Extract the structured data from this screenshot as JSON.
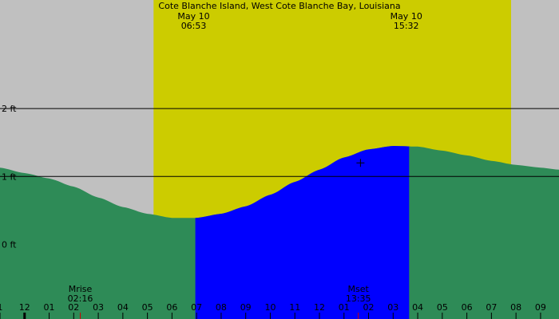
{
  "chart_data": {
    "type": "area",
    "title": "Cote Blanche Island, West Cote Blanche Bay, Louisiana",
    "y_unit": "ft",
    "ylim": [
      -1.1,
      3.6
    ],
    "y_ticks": [
      {
        "value": 2,
        "label": "2 ft"
      },
      {
        "value": 1,
        "label": "1 ft"
      },
      {
        "value": 0,
        "label": "0 ft"
      }
    ],
    "reference_lines": [
      2,
      1
    ],
    "x_unit": "hour",
    "x_range": [
      -1.0,
      21.75
    ],
    "x_ticks": [
      {
        "hour": -1,
        "label": "1"
      },
      {
        "hour": 0,
        "label": "12"
      },
      {
        "hour": 1,
        "label": "01"
      },
      {
        "hour": 2,
        "label": "02"
      },
      {
        "hour": 3,
        "label": "03"
      },
      {
        "hour": 4,
        "label": "04"
      },
      {
        "hour": 5,
        "label": "05"
      },
      {
        "hour": 6,
        "label": "06"
      },
      {
        "hour": 7,
        "label": "07"
      },
      {
        "hour": 8,
        "label": "08"
      },
      {
        "hour": 9,
        "label": "09"
      },
      {
        "hour": 10,
        "label": "10"
      },
      {
        "hour": 11,
        "label": "11"
      },
      {
        "hour": 12,
        "label": "12"
      },
      {
        "hour": 13,
        "label": "01"
      },
      {
        "hour": 14,
        "label": "02"
      },
      {
        "hour": 15,
        "label": "03"
      },
      {
        "hour": 16,
        "label": "04"
      },
      {
        "hour": 17,
        "label": "05"
      },
      {
        "hour": 18,
        "label": "06"
      },
      {
        "hour": 19,
        "label": "07"
      },
      {
        "hour": 20,
        "label": "08"
      },
      {
        "hour": 21,
        "label": "09"
      }
    ],
    "daylight": {
      "start": 5.25,
      "end": 19.8
    },
    "sun_events": [
      {
        "date": "May 10",
        "time": "06:53",
        "hour": 6.883
      },
      {
        "date": "May 10",
        "time": "15:32",
        "hour": 15.533
      }
    ],
    "moon_events": [
      {
        "label": "Mrise",
        "time": "02:16",
        "hour": 2.267
      },
      {
        "label": "Mset",
        "time": "13:35",
        "hour": 13.583
      }
    ],
    "highlight_window": {
      "start": 6.95,
      "end": 15.65
    },
    "tide_series": {
      "name": "",
      "points": [
        {
          "x": -1.0,
          "y": 1.13
        },
        {
          "x": 0.0,
          "y": 1.05
        },
        {
          "x": 1.0,
          "y": 0.97
        },
        {
          "x": 2.0,
          "y": 0.85
        },
        {
          "x": 3.0,
          "y": 0.69
        },
        {
          "x": 4.0,
          "y": 0.55
        },
        {
          "x": 5.0,
          "y": 0.45
        },
        {
          "x": 6.0,
          "y": 0.39
        },
        {
          "x": 7.0,
          "y": 0.39
        },
        {
          "x": 8.0,
          "y": 0.45
        },
        {
          "x": 9.0,
          "y": 0.56
        },
        {
          "x": 10.0,
          "y": 0.73
        },
        {
          "x": 11.0,
          "y": 0.92
        },
        {
          "x": 12.0,
          "y": 1.1
        },
        {
          "x": 13.0,
          "y": 1.28
        },
        {
          "x": 14.0,
          "y": 1.4
        },
        {
          "x": 15.0,
          "y": 1.45
        },
        {
          "x": 16.0,
          "y": 1.44
        },
        {
          "x": 17.0,
          "y": 1.38
        },
        {
          "x": 18.0,
          "y": 1.31
        },
        {
          "x": 19.0,
          "y": 1.23
        },
        {
          "x": 20.0,
          "y": 1.17
        },
        {
          "x": 21.0,
          "y": 1.13
        },
        {
          "x": 21.75,
          "y": 1.1
        }
      ]
    },
    "cursor": {
      "x": 13.67,
      "y": 1.2
    }
  },
  "colors": {
    "night": "#c0c0c0",
    "day": "#cccc00",
    "tide": "#2e8b57",
    "highlight": "#0000ff",
    "text": "#000000",
    "moon_tick": "#cc0000"
  }
}
